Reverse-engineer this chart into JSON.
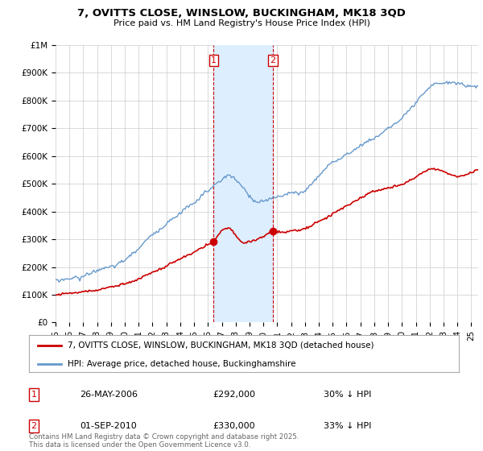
{
  "title": "7, OVITTS CLOSE, WINSLOW, BUCKINGHAM, MK18 3QD",
  "subtitle": "Price paid vs. HM Land Registry's House Price Index (HPI)",
  "ylabel_ticks": [
    "£0",
    "£100K",
    "£200K",
    "£300K",
    "£400K",
    "£500K",
    "£600K",
    "£700K",
    "£800K",
    "£900K",
    "£1M"
  ],
  "ytick_values": [
    0,
    100000,
    200000,
    300000,
    400000,
    500000,
    600000,
    700000,
    800000,
    900000,
    1000000
  ],
  "ylim": [
    0,
    1000000
  ],
  "xlim_start": 1995.0,
  "xlim_end": 2025.5,
  "legend_entries": [
    "7, OVITTS CLOSE, WINSLOW, BUCKINGHAM, MK18 3QD (detached house)",
    "HPI: Average price, detached house, Buckinghamshire"
  ],
  "legend_colors": [
    "#cc0000",
    "#6699cc"
  ],
  "transaction_labels": [
    {
      "num": "1",
      "date": "26-MAY-2006",
      "price": "£292,000",
      "hpi": "30% ↓ HPI"
    },
    {
      "num": "2",
      "date": "01-SEP-2010",
      "price": "£330,000",
      "hpi": "33% ↓ HPI"
    }
  ],
  "vline1_x": 2006.4,
  "vline2_x": 2010.67,
  "shade_color": "#ddeeff",
  "vline_color": "#cc0000",
  "copyright_text": "Contains HM Land Registry data © Crown copyright and database right 2025.\nThis data is licensed under the Open Government Licence v3.0.",
  "background_color": "#ffffff",
  "plot_bg_color": "#ffffff",
  "grid_color": "#cccccc"
}
